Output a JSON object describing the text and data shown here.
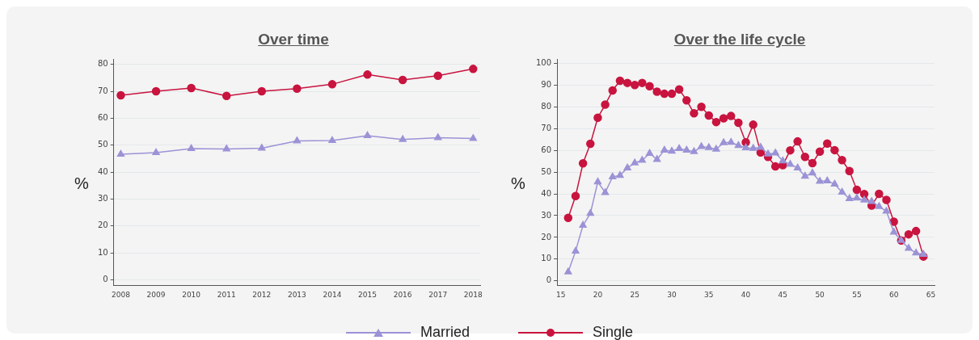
{
  "chart_data": [
    {
      "type": "line",
      "title": "Over time",
      "ylabel": "%",
      "x": [
        2008,
        2009,
        2010,
        2011,
        2012,
        2013,
        2014,
        2015,
        2016,
        2017,
        2018
      ],
      "xlim": [
        2007.8,
        2018.2
      ],
      "xticks": [
        2008,
        2009,
        2010,
        2011,
        2012,
        2013,
        2014,
        2015,
        2016,
        2017,
        2018
      ],
      "ylim": [
        -2,
        82
      ],
      "yticks": [
        0,
        10,
        20,
        30,
        40,
        50,
        60,
        70,
        80
      ],
      "grid": "y",
      "legend": "bottom",
      "series": [
        {
          "name": "Married",
          "color": "#9b93d6",
          "marker": "triangle",
          "values": [
            46.6,
            47.2,
            48.7,
            48.6,
            48.9,
            51.6,
            51.7,
            53.5,
            52.1,
            52.8,
            52.5
          ]
        },
        {
          "name": "Single",
          "color": "#c8143f",
          "marker": "circle",
          "values": [
            68.5,
            70,
            71.2,
            68.3,
            70,
            71,
            72.6,
            76.2,
            74.2,
            75.8,
            78.3
          ]
        }
      ]
    },
    {
      "type": "line",
      "title": "Over the life cycle",
      "ylabel": "%",
      "x": [
        16,
        17,
        18,
        19,
        20,
        21,
        22,
        23,
        24,
        25,
        26,
        27,
        28,
        29,
        30,
        31,
        32,
        33,
        34,
        35,
        36,
        37,
        38,
        39,
        40,
        41,
        42,
        43,
        44,
        45,
        46,
        47,
        48,
        49,
        50,
        51,
        52,
        53,
        54,
        55,
        56,
        57,
        58,
        59,
        60,
        61,
        62,
        63,
        64
      ],
      "xlim": [
        14.5,
        65.5
      ],
      "xticks": [
        15,
        20,
        25,
        30,
        35,
        40,
        45,
        50,
        55,
        60,
        65
      ],
      "ylim": [
        -2,
        102
      ],
      "yticks": [
        0,
        10,
        20,
        30,
        40,
        50,
        60,
        70,
        80,
        90,
        100
      ],
      "grid": "y",
      "series": [
        {
          "color": "#9b93d6",
          "marker": "triangle",
          "values": [
            4.1,
            13.7,
            25.5,
            31,
            45.5,
            40.6,
            47.8,
            48.5,
            51.9,
            54.2,
            55.4,
            58.6,
            55.8,
            60.1,
            59.6,
            60.8,
            60.1,
            59.4,
            61.7,
            61.3,
            60.5,
            63.5,
            63.7,
            62.2,
            61.2,
            60.9,
            61.4,
            58.3,
            58.8,
            55.1,
            53.6,
            51.9,
            48.1,
            49.6,
            45.8,
            46,
            44.5,
            40.8,
            37.8,
            38.1,
            37.1,
            36.5,
            34.2,
            32,
            22.4,
            18.6,
            15,
            12.8,
            12.2
          ]
        },
        {
          "color": "#c8143f",
          "marker": "circle",
          "values": [
            29,
            39,
            54,
            63,
            75,
            81,
            87.5,
            92,
            91,
            90,
            91,
            89.5,
            87,
            86,
            86,
            88,
            83,
            77,
            80,
            76,
            73,
            74.7,
            75.8,
            72.7,
            63.7,
            71.8,
            59,
            57,
            52.6,
            53.2,
            60,
            64.1,
            57,
            54.1,
            59.4,
            63.1,
            60.1,
            55.5,
            50.5,
            41.9,
            39.9,
            34.6,
            40,
            37.2,
            27.2,
            18.6,
            21.4,
            22.9,
            11.2
          ]
        }
      ]
    }
  ]
}
